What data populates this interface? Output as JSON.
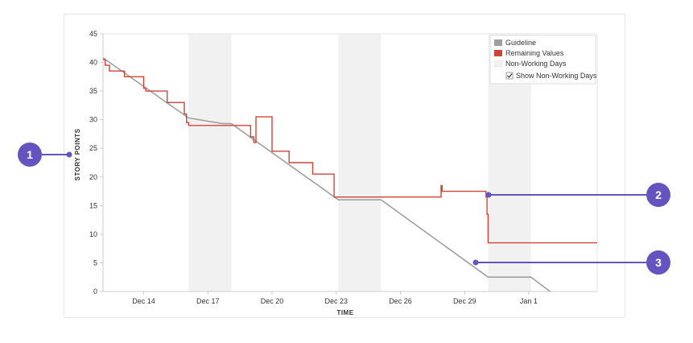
{
  "chart_data": {
    "type": "line",
    "title": "",
    "xlabel": "TIME",
    "ylabel": "STORY POINTS",
    "x_tick_labels": [
      "Dec 14",
      "Dec 17",
      "Dec 20",
      "Dec 23",
      "Dec 26",
      "Dec 29",
      "Jan 1"
    ],
    "x_tick_positions": [
      14,
      17,
      20,
      23,
      26,
      29,
      32
    ],
    "x_range": [
      12.1,
      35.2
    ],
    "ylim": [
      0,
      45
    ],
    "yticks": [
      0,
      5,
      10,
      15,
      20,
      25,
      30,
      35,
      40,
      45
    ],
    "y_tick_labels": [
      "0",
      "5",
      "10",
      "15",
      "20",
      "25",
      "30",
      "35",
      "40",
      "45"
    ],
    "grid": false,
    "legend_position": "top-right",
    "legend": {
      "items": [
        {
          "label": "Guideline",
          "color": "#a0a0a0"
        },
        {
          "label": "Remaining Values",
          "color": "#d04437"
        },
        {
          "label": "Non-Working Days",
          "color": "#f1f1f1"
        }
      ],
      "checkbox_label": "Show Non-Working Days",
      "checkbox_checked": true
    },
    "non_working_days": [
      [
        16.1,
        18.1
      ],
      [
        23.1,
        25.1
      ],
      [
        30.1,
        32.1
      ]
    ],
    "series": [
      {
        "name": "Guideline",
        "color": "#a0a0a0",
        "points": [
          [
            12.1,
            40.8
          ],
          [
            16.1,
            30.3
          ],
          [
            17.7,
            29.3
          ],
          [
            18.1,
            29.3
          ],
          [
            23.1,
            16.0
          ],
          [
            25.1,
            16.0
          ],
          [
            30.1,
            2.5
          ],
          [
            32.1,
            2.5
          ],
          [
            33,
            0
          ]
        ]
      },
      {
        "name": "Remaining Values",
        "color": "#d04437",
        "points": [
          [
            12.1,
            40.5
          ],
          [
            12.2,
            40.5
          ],
          [
            12.2,
            39.5
          ],
          [
            12.4,
            39.5
          ],
          [
            12.4,
            38.5
          ],
          [
            13.1,
            38.5
          ],
          [
            13.1,
            37.5
          ],
          [
            14.0,
            37.5
          ],
          [
            14.0,
            35.5
          ],
          [
            14.1,
            35.5
          ],
          [
            14.1,
            35.0
          ],
          [
            15.1,
            35.0
          ],
          [
            15.1,
            33.0
          ],
          [
            15.9,
            33.0
          ],
          [
            15.9,
            31.0
          ],
          [
            16.0,
            31.0
          ],
          [
            16.0,
            29.5
          ],
          [
            16.1,
            29.5
          ],
          [
            16.1,
            29.0
          ],
          [
            19.0,
            29.0
          ],
          [
            19.0,
            27.0
          ],
          [
            19.15,
            27.0
          ],
          [
            19.15,
            26.0
          ],
          [
            19.25,
            26.0
          ],
          [
            19.25,
            30.5
          ],
          [
            20.0,
            30.5
          ],
          [
            20.0,
            24.5
          ],
          [
            20.8,
            24.5
          ],
          [
            20.8,
            22.5
          ],
          [
            21.9,
            22.5
          ],
          [
            21.9,
            20.5
          ],
          [
            22.9,
            20.5
          ],
          [
            22.9,
            16.5
          ],
          [
            27.9,
            16.5
          ],
          [
            27.9,
            18.5
          ],
          [
            27.95,
            18.5
          ],
          [
            27.95,
            17.5
          ],
          [
            30.0,
            17.5
          ],
          [
            30.0,
            16.5
          ],
          [
            30.05,
            16.5
          ],
          [
            30.05,
            13.5
          ],
          [
            30.1,
            13.5
          ],
          [
            30.1,
            8.5
          ],
          [
            35.2,
            8.5
          ]
        ]
      }
    ]
  },
  "callouts": [
    {
      "number": "1",
      "color": "#6554c0"
    },
    {
      "number": "2",
      "color": "#6554c0"
    },
    {
      "number": "3",
      "color": "#6554c0"
    }
  ]
}
